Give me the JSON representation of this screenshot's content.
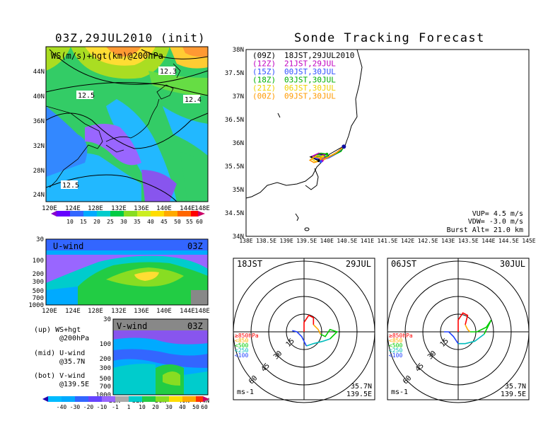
{
  "left_title": "03Z,29JUL2010 (init)",
  "right_title": "Sonde Tracking Forecast",
  "upper_panel": {
    "label": "WS(m/s)+hgt(km)@200hPa",
    "lat_ticks": [
      "44N",
      "40N",
      "36N",
      "32N",
      "28N",
      "24N"
    ],
    "lon_ticks": [
      "120E",
      "124E",
      "128E",
      "132E",
      "136E",
      "140E",
      "144E",
      "148E"
    ],
    "contour_labels": [
      "12.3",
      "12.5",
      "12.4",
      "12.5"
    ],
    "colorbar": [
      "10",
      "15",
      "20",
      "25",
      "30",
      "35",
      "40",
      "45",
      "50",
      "55",
      "60"
    ]
  },
  "u_panel": {
    "label": "U-wind",
    "time": "03Z",
    "p_ticks": [
      "30",
      "100",
      "200",
      "300",
      "500",
      "700",
      "1000"
    ],
    "lon_ticks": [
      "120E",
      "124E",
      "128E",
      "132E",
      "136E",
      "140E",
      "144E",
      "148E"
    ]
  },
  "v_panel": {
    "label": "V-wind",
    "time": "03Z",
    "p_ticks": [
      "30",
      "100",
      "200",
      "300",
      "500",
      "700",
      "1000"
    ],
    "lat_ticks": [
      "28N",
      "32N",
      "36N",
      "40N",
      "44N"
    ]
  },
  "notes": [
    {
      "line1": "(up) WS+hgt",
      "line2": "@200hPa"
    },
    {
      "line1": "(mid) U-wind",
      "line2": "@35.7N"
    },
    {
      "line1": "(bot) V-wind",
      "line2": "@139.5E"
    }
  ],
  "bottom_colorbar": [
    "-40",
    "-30",
    "-20",
    "-10",
    "-1",
    "1",
    "10",
    "20",
    "30",
    "40",
    "50",
    "60"
  ],
  "track_map": {
    "lat_ticks": [
      "38N",
      "37.5N",
      "37N",
      "36.5N",
      "36N",
      "35.5N",
      "35N",
      "34.5N",
      "34N"
    ],
    "lon_ticks": [
      "138E",
      "138.5E",
      "139E",
      "139.5E",
      "140E",
      "140.5E",
      "141E",
      "141.5E",
      "142E",
      "142.5E",
      "143E",
      "143.5E",
      "144E",
      "144.5E",
      "145E"
    ],
    "legend": [
      {
        "z": "(09Z)",
        "text": "18JST,29JUL2010",
        "color": "#000000"
      },
      {
        "z": "(12Z)",
        "text": "21JST,29JUL",
        "color": "#c000c0"
      },
      {
        "z": "(15Z)",
        "text": "00JST,30JUL",
        "color": "#3050ff"
      },
      {
        "z": "(18Z)",
        "text": "03JST,30JUL",
        "color": "#00b000"
      },
      {
        "z": "(21Z)",
        "text": "06JST,30JUL",
        "color": "#f0d000"
      },
      {
        "z": "(00Z)",
        "text": "09JST,30JUL",
        "color": "#ff9900"
      }
    ],
    "params": [
      "VUP= 4.5 m/s",
      "VDW= -3.0 m/s",
      "Burst Alt= 21.0 km"
    ]
  },
  "hodo_left": {
    "time": "18JST",
    "date": "29JUL",
    "ring_labels": [
      "15",
      "30",
      "45",
      "60"
    ],
    "levels": [
      "≥850hPa",
      "<850",
      "<500",
      "<250",
      "<100"
    ],
    "level_colors": [
      "#ff0000",
      "#ffaa00",
      "#00cc00",
      "#00bbbb",
      "#2040ff"
    ],
    "lat": "35.7N",
    "lon": "139.5E",
    "unit": "ms-1"
  },
  "hodo_right": {
    "time": "06JST",
    "date": "30JUL",
    "ring_labels": [
      "15",
      "30",
      "45",
      "60"
    ],
    "levels": [
      "≥850hPa",
      "<850",
      "<500",
      "<250",
      "<100"
    ],
    "level_colors": [
      "#ff0000",
      "#ffaa00",
      "#00cc00",
      "#00bbbb",
      "#2040ff"
    ],
    "lat": "35.7N",
    "lon": "139.5E",
    "unit": "ms-1"
  },
  "chart_data": [
    {
      "type": "heatmap",
      "title": "03Z,29JUL2010 (init)",
      "subtitle": "WS(m/s)+hgt(km)@200hPa",
      "xlabel": "",
      "ylabel": "",
      "colorbar_ticks": [
        10,
        15,
        20,
        25,
        30,
        35,
        40,
        45,
        50,
        55,
        60
      ],
      "xlim": [
        "120E",
        "148E"
      ],
      "ylim": [
        "24N",
        "44N"
      ]
    },
    {
      "type": "heatmap",
      "title": "U-wind 03Z",
      "xlim": [
        "120E",
        "148E"
      ],
      "ylim": [
        1000,
        30
      ]
    },
    {
      "type": "heatmap",
      "title": "V-wind 03Z",
      "xlim": [
        "28N",
        "44N"
      ],
      "ylim": [
        1000,
        30
      ],
      "colorbar_ticks": [
        -40,
        -30,
        -20,
        -10,
        -1,
        1,
        10,
        20,
        30,
        40,
        50,
        60
      ]
    },
    {
      "type": "line",
      "title": "Sonde Tracking Forecast",
      "xlim": [
        138,
        145
      ],
      "ylim": [
        34,
        38
      ],
      "series": [
        {
          "name": "(09Z) 18JST,29JUL2010",
          "x": [
            140.42,
            140.3,
            140.0,
            139.75,
            139.6,
            139.78,
            139.95,
            139.8
          ],
          "y": [
            35.92,
            35.82,
            35.67,
            35.64,
            35.7,
            35.76,
            35.74,
            35.62
          ]
        },
        {
          "name": "(12Z) 21JST,29JUL",
          "x": [
            140.42,
            140.32,
            140.05,
            139.8,
            139.65,
            139.8,
            139.95,
            139.88
          ],
          "y": [
            35.92,
            35.84,
            35.7,
            35.66,
            35.72,
            35.78,
            35.75,
            35.62
          ]
        },
        {
          "name": "(15Z) 00JST,30JUL",
          "x": [
            140.42,
            140.3,
            140.05,
            139.85,
            139.7,
            139.82,
            139.92,
            139.85
          ],
          "y": [
            35.92,
            35.8,
            35.68,
            35.63,
            35.68,
            35.74,
            35.72,
            35.6
          ]
        },
        {
          "name": "(18Z) 03JST,30JUL",
          "x": [
            140.42,
            140.35,
            140.1,
            139.9,
            139.72,
            139.85,
            140.0
          ],
          "y": [
            35.92,
            35.82,
            35.72,
            35.7,
            35.72,
            35.78,
            35.76
          ]
        },
        {
          "name": "(21Z) 06JST,30JUL",
          "x": [
            140.42,
            140.25,
            139.95,
            139.72,
            139.62,
            139.75,
            139.9
          ],
          "y": [
            35.92,
            35.8,
            35.66,
            35.6,
            35.66,
            35.73,
            35.71
          ]
        },
        {
          "name": "(00Z) 09JST,30JUL",
          "x": [
            140.42,
            140.22,
            139.9,
            139.68,
            139.58,
            139.7,
            139.85
          ],
          "y": [
            35.92,
            35.78,
            35.63,
            35.58,
            35.63,
            35.7,
            35.67
          ]
        }
      ]
    },
    {
      "type": "scatter",
      "title": "Hodograph 18JST 29JUL",
      "rings": [
        15,
        30,
        45,
        60
      ]
    },
    {
      "type": "scatter",
      "title": "Hodograph 06JST 30JUL",
      "rings": [
        15,
        30,
        45,
        60
      ]
    }
  ]
}
